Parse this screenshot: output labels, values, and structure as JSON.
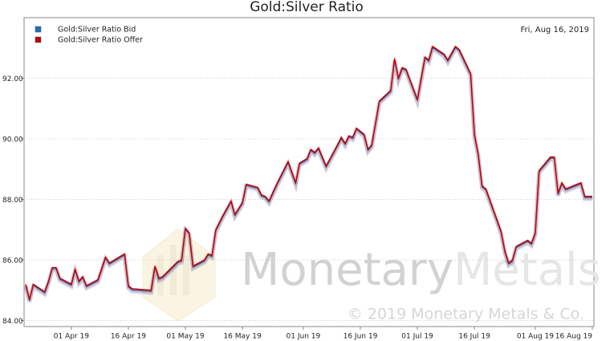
{
  "chart_data": {
    "type": "line",
    "title": "Gold:Silver Ratio",
    "date_label": "Fri, Aug 16, 2019",
    "watermark": {
      "name": [
        "Monetary",
        "Metals"
      ],
      "copyright": "© 2019 Monetary Metals & Co."
    },
    "x": [
      "2019-03-20",
      "2019-03-21",
      "2019-03-22",
      "2019-03-25",
      "2019-03-26",
      "2019-03-27",
      "2019-03-28",
      "2019-03-29",
      "2019-04-01",
      "2019-04-02",
      "2019-04-03",
      "2019-04-04",
      "2019-04-05",
      "2019-04-08",
      "2019-04-10",
      "2019-04-11",
      "2019-04-15",
      "2019-04-16",
      "2019-04-17",
      "2019-04-22",
      "2019-04-23",
      "2019-04-24",
      "2019-04-25",
      "2019-04-29",
      "2019-04-30",
      "2019-05-01",
      "2019-05-02",
      "2019-05-03",
      "2019-05-06",
      "2019-05-07",
      "2019-05-08",
      "2019-05-09",
      "2019-05-11",
      "2019-05-13",
      "2019-05-14",
      "2019-05-16",
      "2019-05-17",
      "2019-05-20",
      "2019-05-21",
      "2019-05-22",
      "2019-05-23",
      "2019-05-25",
      "2019-05-28",
      "2019-05-30",
      "2019-05-31",
      "2019-06-02",
      "2019-06-03",
      "2019-06-04",
      "2019-06-05",
      "2019-06-07",
      "2019-06-10",
      "2019-06-11",
      "2019-06-12",
      "2019-06-13",
      "2019-06-14",
      "2019-06-15",
      "2019-06-17",
      "2019-06-18",
      "2019-06-19",
      "2019-06-21",
      "2019-06-24",
      "2019-06-25",
      "2019-06-26",
      "2019-06-27",
      "2019-06-28",
      "2019-07-01",
      "2019-07-03",
      "2019-07-04",
      "2019-07-05",
      "2019-07-08",
      "2019-07-09",
      "2019-07-11",
      "2019-07-12",
      "2019-07-15",
      "2019-07-16",
      "2019-07-17",
      "2019-07-18",
      "2019-07-19",
      "2019-07-23",
      "2019-07-24",
      "2019-07-25",
      "2019-07-26",
      "2019-07-27",
      "2019-07-30",
      "2019-07-31",
      "2019-08-01",
      "2019-08-02",
      "2019-08-05",
      "2019-08-06",
      "2019-08-07",
      "2019-08-08",
      "2019-08-09",
      "2019-08-13",
      "2019-08-14",
      "2019-08-16"
    ],
    "series": [
      {
        "name": "Gold:Silver Ratio Bid",
        "color": "#1f6fc0",
        "values": [
          85.16,
          84.66,
          85.16,
          84.91,
          85.26,
          85.71,
          85.71,
          85.36,
          85.16,
          85.66,
          85.26,
          85.41,
          85.11,
          85.31,
          86.06,
          85.86,
          86.16,
          85.11,
          85.01,
          84.96,
          85.76,
          85.36,
          85.41,
          85.91,
          85.96,
          87.01,
          86.86,
          85.76,
          85.96,
          86.16,
          86.11,
          86.96,
          87.46,
          87.91,
          87.46,
          87.86,
          88.46,
          88.36,
          88.11,
          88.06,
          87.91,
          88.46,
          89.21,
          88.51,
          89.16,
          89.31,
          89.61,
          89.51,
          89.66,
          89.06,
          89.76,
          90.01,
          89.81,
          90.06,
          90.01,
          90.31,
          90.11,
          89.61,
          89.76,
          91.21,
          91.56,
          92.61,
          91.96,
          92.31,
          92.26,
          91.26,
          92.66,
          92.56,
          93.01,
          92.76,
          92.56,
          93.01,
          92.91,
          92.11,
          90.11,
          89.46,
          88.41,
          88.31,
          86.91,
          86.26,
          85.86,
          85.96,
          86.41,
          86.61,
          86.51,
          86.86,
          88.91,
          89.36,
          89.36,
          88.16,
          88.51,
          88.31,
          88.51,
          88.06,
          88.06
        ]
      },
      {
        "name": "Gold:Silver Ratio Offer",
        "color": "#c00000",
        "values": [
          85.2,
          84.7,
          85.2,
          84.95,
          85.3,
          85.75,
          85.75,
          85.4,
          85.2,
          85.7,
          85.3,
          85.45,
          85.15,
          85.35,
          86.1,
          85.9,
          86.2,
          85.15,
          85.05,
          85.0,
          85.8,
          85.4,
          85.45,
          85.95,
          86.0,
          87.05,
          86.9,
          85.8,
          86.0,
          86.2,
          86.15,
          87.0,
          87.5,
          87.95,
          87.5,
          87.9,
          88.5,
          88.4,
          88.15,
          88.1,
          87.95,
          88.5,
          89.25,
          88.55,
          89.2,
          89.35,
          89.65,
          89.55,
          89.7,
          89.1,
          89.8,
          90.05,
          89.85,
          90.1,
          90.05,
          90.35,
          90.15,
          89.65,
          89.8,
          91.25,
          91.6,
          92.65,
          92.0,
          92.35,
          92.3,
          91.3,
          92.7,
          92.6,
          93.05,
          92.8,
          92.6,
          93.05,
          92.95,
          92.15,
          90.15,
          89.5,
          88.45,
          88.35,
          86.95,
          86.3,
          85.9,
          86.0,
          86.45,
          86.65,
          86.55,
          86.9,
          88.95,
          89.4,
          89.4,
          88.2,
          88.55,
          88.35,
          88.55,
          88.1,
          88.1
        ]
      }
    ],
    "xlim": [
      "2019-03-20",
      "2019-08-16"
    ],
    "xticks": [
      {
        "value": "2019-04-01",
        "label": "01 Apr 19"
      },
      {
        "value": "2019-04-16",
        "label": "16 Apr 19"
      },
      {
        "value": "2019-05-01",
        "label": "01 May 19"
      },
      {
        "value": "2019-05-16",
        "label": "16 May 19"
      },
      {
        "value": "2019-06-01",
        "label": "01 Jun 19"
      },
      {
        "value": "2019-06-16",
        "label": "16 Jun 19"
      },
      {
        "value": "2019-07-01",
        "label": "01 Jul 19"
      },
      {
        "value": "2019-07-16",
        "label": "16 Jul 19"
      },
      {
        "value": "2019-08-01",
        "label": "01 Aug 19"
      },
      {
        "value": "2019-08-16",
        "label": "16 Aug 19"
      }
    ],
    "ylim": [
      83.8,
      94.0
    ],
    "yticks": [
      {
        "value": 84,
        "label": "84.00"
      },
      {
        "value": 86,
        "label": "86.00"
      },
      {
        "value": 88,
        "label": "88.00"
      },
      {
        "value": 90,
        "label": "90.00"
      },
      {
        "value": 92,
        "label": "92.00"
      }
    ],
    "grid": true,
    "legend": "upper left"
  }
}
